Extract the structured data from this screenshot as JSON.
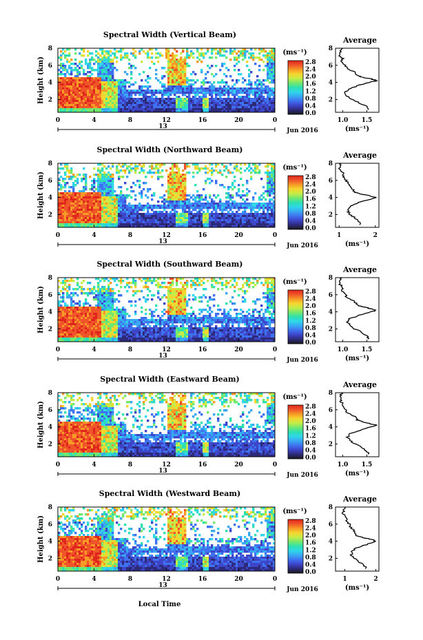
{
  "colors": {
    "scale": [
      "#1a1a1a",
      "#2d2a7a",
      "#3d45c9",
      "#3f72f0",
      "#38a8f2",
      "#2fd7e8",
      "#2ee0b0",
      "#73e86e",
      "#c6ec48",
      "#f5d62e",
      "#f79a26",
      "#f0552a",
      "#e0261c"
    ],
    "line": "#000000",
    "background": "#ffffff"
  },
  "shared": {
    "height_label": "Height (km)",
    "height_ticks": [
      "2",
      "4",
      "6",
      "8"
    ],
    "time_ticks": [
      "0",
      "4",
      "8",
      "12",
      "16",
      "20",
      "0"
    ],
    "date_day": "13",
    "date_month": "Jun 2016",
    "colorbar_unit": "(ms⁻¹)",
    "colorbar_ticks": [
      "0.0",
      "0.4",
      "0.8",
      "1.2",
      "1.6",
      "2.0",
      "2.4",
      "2.8"
    ],
    "avg_title": "Average",
    "avg_unit": "(ms⁻¹)",
    "xlabel": "Local Time"
  },
  "panels": [
    {
      "title": "Spectral Width (Vertical Beam)",
      "avg_ticks": [
        "1.0",
        "1.5"
      ],
      "avg_range": [
        0.85,
        1.75
      ]
    },
    {
      "title": "Spectral Width (Northward Beam)",
      "avg_ticks": [
        "1",
        "2"
      ],
      "avg_range": [
        0.9,
        2.1
      ]
    },
    {
      "title": "Spectral Width (Southward Beam)",
      "avg_ticks": [
        "1.0",
        "1.5"
      ],
      "avg_range": [
        0.85,
        1.75
      ]
    },
    {
      "title": "Spectral Width (Eastward Beam)",
      "avg_ticks": [
        "1.0",
        "1.5"
      ],
      "avg_range": [
        0.85,
        1.75
      ]
    },
    {
      "title": "Spectral Width (Westward Beam)",
      "avg_ticks": [
        "1",
        "2"
      ],
      "avg_range": [
        0.7,
        2.1
      ]
    }
  ],
  "chart_data": {
    "type": "heatmap",
    "z_label": "Spectral Width (ms⁻¹)",
    "zlim": [
      0.0,
      3.0
    ],
    "x_label": "Local Time",
    "x_range_hours": [
      0,
      24
    ],
    "y_label": "Height (km)",
    "y_range_km": [
      0.5,
      8.0
    ],
    "average_profile": {
      "title": "Average",
      "height_km": [
        0.8,
        1.2,
        1.6,
        2.0,
        2.4,
        2.8,
        3.2,
        3.6,
        4.0,
        4.2,
        4.4,
        4.6,
        4.8,
        5.2,
        5.6,
        6.0,
        6.4,
        6.8,
        7.2,
        7.6,
        8.0
      ],
      "vertical": [
        1.55,
        1.5,
        1.35,
        1.2,
        1.1,
        1.05,
        1.12,
        1.3,
        1.55,
        1.7,
        1.6,
        1.4,
        1.3,
        1.25,
        1.1,
        1.05,
        0.95,
        1.0,
        0.92,
        0.95,
        1.0
      ],
      "northward": [
        1.6,
        1.55,
        1.45,
        1.3,
        1.25,
        1.3,
        1.4,
        1.7,
        2.0,
        1.85,
        1.6,
        1.45,
        1.4,
        1.35,
        1.25,
        1.2,
        1.1,
        1.15,
        1.05,
        1.0,
        1.05
      ],
      "southward": [
        1.55,
        1.5,
        1.4,
        1.25,
        1.15,
        1.1,
        1.15,
        1.35,
        1.6,
        1.7,
        1.55,
        1.4,
        1.3,
        1.25,
        1.1,
        1.05,
        1.0,
        0.98,
        0.95,
        0.95,
        0.98
      ],
      "eastward": [
        1.55,
        1.5,
        1.4,
        1.25,
        1.15,
        1.1,
        1.15,
        1.35,
        1.6,
        1.7,
        1.55,
        1.4,
        1.3,
        1.25,
        1.1,
        1.05,
        1.0,
        0.98,
        0.95,
        0.95,
        0.98
      ],
      "westward": [
        1.7,
        1.6,
        1.45,
        1.3,
        1.2,
        1.25,
        1.35,
        1.7,
        2.0,
        1.9,
        1.6,
        1.4,
        1.35,
        1.3,
        1.2,
        1.15,
        1.05,
        1.05,
        0.95,
        0.95,
        1.0
      ]
    }
  }
}
